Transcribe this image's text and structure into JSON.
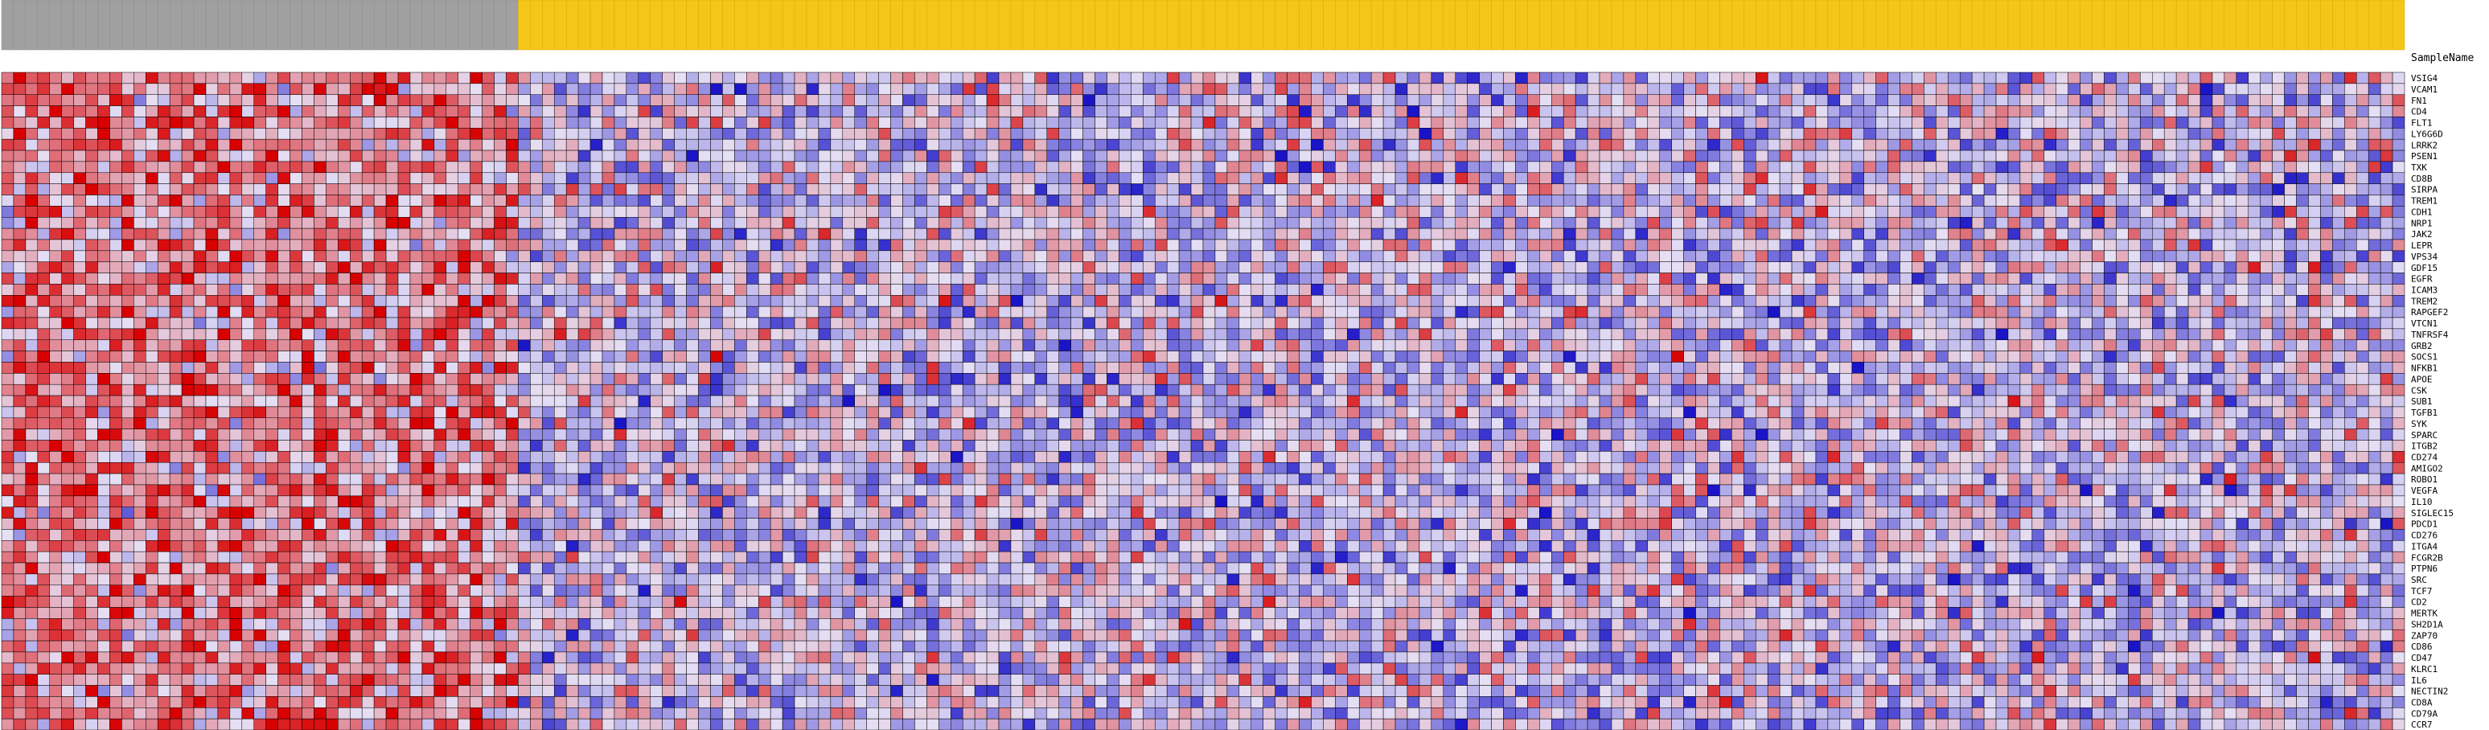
{
  "chart_data": {
    "type": "heatmap",
    "row_axis_title": "SampleName",
    "genes": [
      "VSIG4",
      "VCAM1",
      "FN1",
      "CD4",
      "FLT1",
      "LY6G6D",
      "LRRK2",
      "PSEN1",
      "TXK",
      "CD8B",
      "SIRPA",
      "TREM1",
      "CDH1",
      "NRP1",
      "JAK2",
      "LEPR",
      "VPS34",
      "GDF15",
      "EGFR",
      "ICAM3",
      "TREM2",
      "RAPGEF2",
      "VTCN1",
      "TNFRSF4",
      "GRB2",
      "SOCS1",
      "NFKB1",
      "APOE",
      "CSK",
      "SUB1",
      "TGFB1",
      "SYK",
      "SPARC",
      "ITGB2",
      "CD274",
      "AMIGO2",
      "ROBO1",
      "VEGFA",
      "IL10",
      "SIGLEC15",
      "PDCD1",
      "CD276",
      "ITGA4",
      "FCGR2B",
      "PTPN6",
      "SRC",
      "TCF7",
      "CD2",
      "MERTK",
      "SH2D1A",
      "ZAP70",
      "CD86",
      "CD47",
      "KLRC1",
      "IL6",
      "NECTIN2",
      "CD8A",
      "CD79A",
      "CCR7"
    ],
    "color_scale": {
      "low": "#1a14c8",
      "mid": "#e6e0f5",
      "high": "#d80000"
    },
    "group_colors": {
      "group_a": "#a0a0a0",
      "group_b": "#f5c518"
    },
    "group_a_count": 43,
    "group_b_count": 157,
    "grid": true,
    "note_values": "z-scored expression, estimated range -3 to 3"
  }
}
